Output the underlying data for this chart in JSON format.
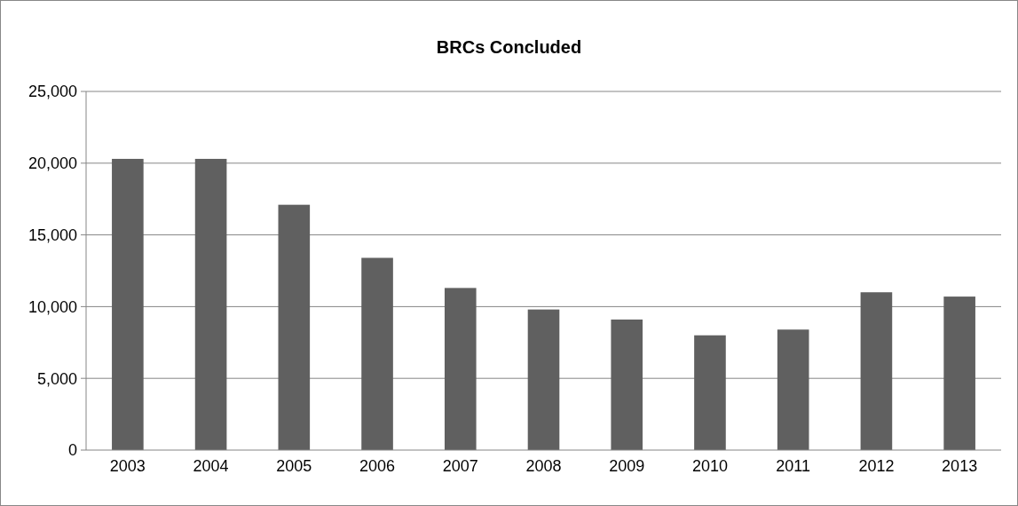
{
  "chart_data": {
    "type": "bar",
    "title": "BRCs Concluded",
    "categories": [
      "2003",
      "2004",
      "2005",
      "2006",
      "2007",
      "2008",
      "2009",
      "2010",
      "2011",
      "2012",
      "2013"
    ],
    "values": [
      20300,
      20300,
      17100,
      13400,
      11300,
      9800,
      9100,
      8000,
      8400,
      11000,
      10700
    ],
    "color": "#606060",
    "ylim": [
      0,
      25000
    ],
    "yticks": [
      {
        "value": 0,
        "label": "0"
      },
      {
        "value": 5000,
        "label": "5,000"
      },
      {
        "value": 10000,
        "label": "10,000"
      },
      {
        "value": 15000,
        "label": "15,000"
      },
      {
        "value": 20000,
        "label": "20,000"
      },
      {
        "value": 25000,
        "label": "25,000"
      }
    ],
    "grid": "y"
  }
}
